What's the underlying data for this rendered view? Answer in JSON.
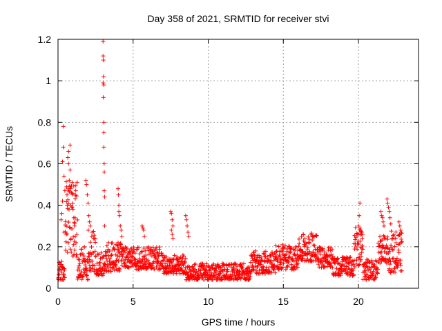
{
  "chart_data": {
    "type": "scatter",
    "title": "Day 358 of 2021, SRMTID for receiver stvi",
    "xlabel": "GPS time / hours",
    "ylabel": "SRMTID / TECUs",
    "xlim": [
      0,
      24
    ],
    "ylim": [
      0,
      1.2
    ],
    "xticks": [
      0,
      5,
      10,
      15,
      20
    ],
    "yticks": [
      0,
      0.2,
      0.4,
      0.6,
      0.8,
      1,
      1.2
    ],
    "xtick_labels": [
      "0",
      "5",
      "10",
      "15",
      "20"
    ],
    "ytick_labels": [
      "0",
      "0.2",
      "0.4",
      "0.6",
      "0.8",
      "1",
      "1.2"
    ],
    "grid": true,
    "marker": "+",
    "color": "#ff0000",
    "background_series": [
      {
        "start": 0.0,
        "end": 0.45,
        "lo": 0.04,
        "hi": 0.13
      },
      {
        "start": 0.45,
        "end": 1.3,
        "lo": 0.15,
        "hi": 0.55
      },
      {
        "start": 1.3,
        "end": 2.0,
        "lo": 0.04,
        "hi": 0.2
      },
      {
        "start": 2.0,
        "end": 2.5,
        "lo": 0.08,
        "hi": 0.28
      },
      {
        "start": 2.5,
        "end": 3.2,
        "lo": 0.06,
        "hi": 0.18
      },
      {
        "start": 3.2,
        "end": 4.2,
        "lo": 0.08,
        "hi": 0.22
      },
      {
        "start": 4.2,
        "end": 5.0,
        "lo": 0.1,
        "hi": 0.2
      },
      {
        "start": 5.0,
        "end": 7.0,
        "lo": 0.09,
        "hi": 0.2
      },
      {
        "start": 7.0,
        "end": 8.5,
        "lo": 0.07,
        "hi": 0.16
      },
      {
        "start": 8.5,
        "end": 10.5,
        "lo": 0.04,
        "hi": 0.12
      },
      {
        "start": 10.5,
        "end": 12.8,
        "lo": 0.04,
        "hi": 0.12
      },
      {
        "start": 12.8,
        "end": 14.5,
        "lo": 0.07,
        "hi": 0.18
      },
      {
        "start": 14.5,
        "end": 16.0,
        "lo": 0.09,
        "hi": 0.21
      },
      {
        "start": 16.0,
        "end": 17.3,
        "lo": 0.13,
        "hi": 0.27
      },
      {
        "start": 17.3,
        "end": 18.3,
        "lo": 0.1,
        "hi": 0.2
      },
      {
        "start": 18.3,
        "end": 19.7,
        "lo": 0.06,
        "hi": 0.15
      },
      {
        "start": 19.7,
        "end": 20.3,
        "lo": 0.1,
        "hi": 0.3
      },
      {
        "start": 20.3,
        "end": 21.3,
        "lo": 0.04,
        "hi": 0.14
      },
      {
        "start": 21.3,
        "end": 22.0,
        "lo": 0.12,
        "hi": 0.26
      },
      {
        "start": 22.0,
        "end": 22.9,
        "lo": 0.07,
        "hi": 0.28
      }
    ],
    "points": [
      [
        0.2,
        0.33
      ],
      [
        0.25,
        0.36
      ],
      [
        0.3,
        0.42
      ],
      [
        0.3,
        0.61
      ],
      [
        0.35,
        0.68
      ],
      [
        0.35,
        0.78
      ],
      [
        0.4,
        0.27
      ],
      [
        0.4,
        0.54
      ],
      [
        0.55,
        0.26
      ],
      [
        0.6,
        0.45
      ],
      [
        0.65,
        0.63
      ],
      [
        0.7,
        0.66
      ],
      [
        0.7,
        0.6
      ],
      [
        0.75,
        0.52
      ],
      [
        0.8,
        0.69
      ],
      [
        0.8,
        0.57
      ],
      [
        0.85,
        0.48
      ],
      [
        0.9,
        0.46
      ],
      [
        0.95,
        0.39
      ],
      [
        1.0,
        0.38
      ],
      [
        1.05,
        0.34
      ],
      [
        1.1,
        0.3
      ],
      [
        1.15,
        0.25
      ],
      [
        1.2,
        0.22
      ],
      [
        1.75,
        0.2
      ],
      [
        1.85,
        0.52
      ],
      [
        1.9,
        0.5
      ],
      [
        1.95,
        0.45
      ],
      [
        2.0,
        0.41
      ],
      [
        2.05,
        0.35
      ],
      [
        2.1,
        0.32
      ],
      [
        2.15,
        0.3
      ],
      [
        3.0,
        1.19
      ],
      [
        3.0,
        1.12
      ],
      [
        3.02,
        1.1
      ],
      [
        3.03,
        1.02
      ],
      [
        3.0,
        0.99
      ],
      [
        3.05,
        0.98
      ],
      [
        3.02,
        0.92
      ],
      [
        3.05,
        0.8
      ],
      [
        3.05,
        0.75
      ],
      [
        3.05,
        0.68
      ],
      [
        3.07,
        0.6
      ],
      [
        3.08,
        0.56
      ],
      [
        3.08,
        0.47
      ],
      [
        3.1,
        0.44
      ],
      [
        3.1,
        0.3
      ],
      [
        4.0,
        0.48
      ],
      [
        4.02,
        0.45
      ],
      [
        4.05,
        0.4
      ],
      [
        4.05,
        0.37
      ],
      [
        4.1,
        0.35
      ],
      [
        4.15,
        0.3
      ],
      [
        4.2,
        0.28
      ],
      [
        4.25,
        0.25
      ],
      [
        4.0,
        0.22
      ],
      [
        5.6,
        0.3
      ],
      [
        5.65,
        0.29
      ],
      [
        5.7,
        0.28
      ],
      [
        5.75,
        0.25
      ],
      [
        7.5,
        0.37
      ],
      [
        7.55,
        0.36
      ],
      [
        7.6,
        0.33
      ],
      [
        7.65,
        0.3
      ],
      [
        7.55,
        0.28
      ],
      [
        7.6,
        0.26
      ],
      [
        7.65,
        0.24
      ],
      [
        8.5,
        0.35
      ],
      [
        8.55,
        0.33
      ],
      [
        8.6,
        0.3
      ],
      [
        8.65,
        0.27
      ],
      [
        8.7,
        0.25
      ],
      [
        20.1,
        0.41
      ],
      [
        20.05,
        0.35
      ],
      [
        20.0,
        0.3
      ],
      [
        20.1,
        0.29
      ],
      [
        20.15,
        0.28
      ],
      [
        20.2,
        0.26
      ],
      [
        20.25,
        0.24
      ],
      [
        21.5,
        0.37
      ],
      [
        21.55,
        0.35
      ],
      [
        21.6,
        0.34
      ],
      [
        21.65,
        0.32
      ],
      [
        21.7,
        0.3
      ],
      [
        21.9,
        0.43
      ],
      [
        21.95,
        0.41
      ],
      [
        22.0,
        0.39
      ],
      [
        22.05,
        0.37
      ],
      [
        22.1,
        0.34
      ],
      [
        22.15,
        0.31
      ],
      [
        22.7,
        0.32
      ],
      [
        22.75,
        0.3
      ],
      [
        22.8,
        0.28
      ],
      [
        22.85,
        0.27
      ]
    ]
  }
}
